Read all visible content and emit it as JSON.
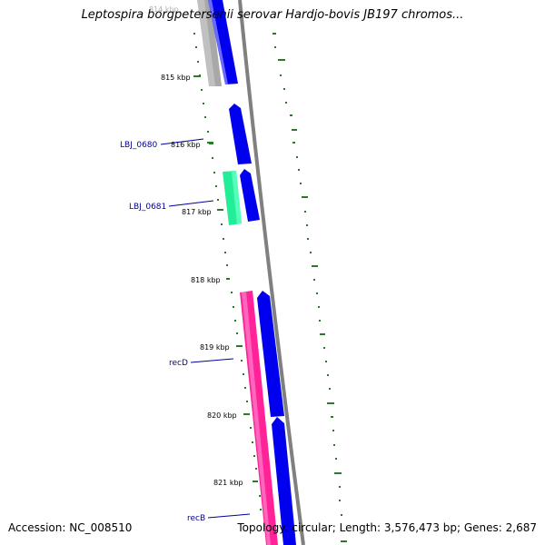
{
  "title": "Leptospira borgpetersenii serovar Hardjo-bovis JB197 chromos...",
  "footer": {
    "accession": "Accession: NC_008510",
    "summary": "Topology: circular; Length: 3,576,473 bp; Genes: 2,687"
  },
  "kbp_ticks": [
    "814 kbp",
    "815 kbp",
    "816 kbp",
    "817 kbp",
    "818 kbp",
    "819 kbp",
    "820 kbp",
    "821 kbp"
  ],
  "gene_labels": [
    "LBJ_0680",
    "LBJ_0681",
    "recD",
    "recB"
  ],
  "colors": {
    "gene_blue": "#0000ee",
    "gene_grey": "#c0c0c0",
    "gene_green": "#22ee99",
    "gene_pink": "#ff2299",
    "backbone": "#888888",
    "gc_dots": "#2a7a2a",
    "label_blue": "#000099"
  }
}
